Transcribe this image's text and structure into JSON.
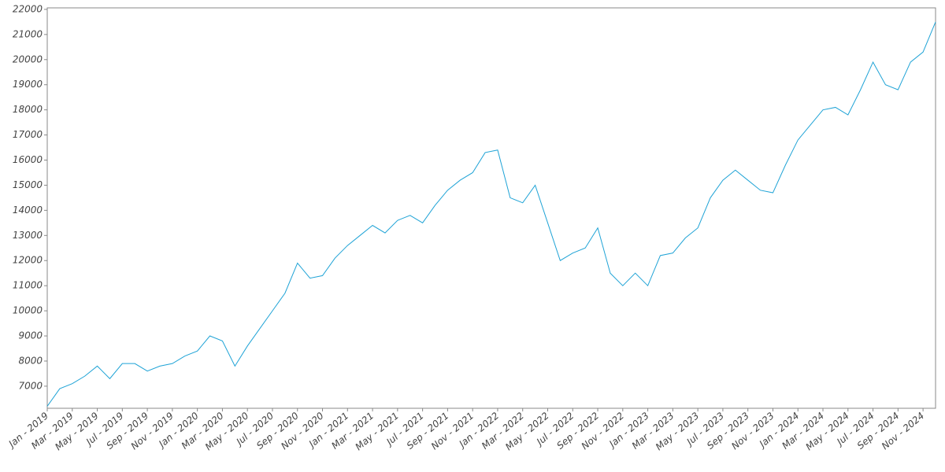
{
  "chart_data": {
    "type": "line",
    "x": [
      "2019-01",
      "2019-02",
      "2019-03",
      "2019-04",
      "2019-05",
      "2019-06",
      "2019-07",
      "2019-08",
      "2019-09",
      "2019-10",
      "2019-11",
      "2019-12",
      "2020-01",
      "2020-02",
      "2020-03",
      "2020-04",
      "2020-05",
      "2020-06",
      "2020-07",
      "2020-08",
      "2020-09",
      "2020-10",
      "2020-11",
      "2020-12",
      "2021-01",
      "2021-02",
      "2021-03",
      "2021-04",
      "2021-05",
      "2021-06",
      "2021-07",
      "2021-08",
      "2021-09",
      "2021-10",
      "2021-11",
      "2021-12",
      "2022-01",
      "2022-02",
      "2022-03",
      "2022-04",
      "2022-05",
      "2022-06",
      "2022-07",
      "2022-08",
      "2022-09",
      "2022-10",
      "2022-11",
      "2022-12",
      "2023-01",
      "2023-02",
      "2023-03",
      "2023-04",
      "2023-05",
      "2023-06",
      "2023-07",
      "2023-08",
      "2023-09",
      "2023-10",
      "2023-11",
      "2023-12",
      "2024-01",
      "2024-02",
      "2024-03",
      "2024-04",
      "2024-05",
      "2024-06",
      "2024-07",
      "2024-08",
      "2024-09",
      "2024-10",
      "2024-11",
      "2024-12"
    ],
    "series": [
      {
        "color": "#1fa3d6",
        "values": [
          6200,
          6900,
          7100,
          7400,
          7800,
          7300,
          7900,
          7900,
          7600,
          7800,
          7900,
          8200,
          8400,
          9000,
          8800,
          7800,
          8600,
          9300,
          10000,
          10700,
          11900,
          11300,
          11400,
          12100,
          12600,
          13000,
          13400,
          13100,
          13600,
          13800,
          13500,
          14200,
          14800,
          15200,
          15500,
          16300,
          16400,
          14500,
          14300,
          15000,
          13500,
          12000,
          12300,
          12500,
          13300,
          11500,
          11000,
          11500,
          11000,
          12200,
          12300,
          12900,
          13300,
          14500,
          15200,
          15600,
          15200,
          14800,
          14700,
          15800,
          16800,
          17400,
          18000,
          18100,
          17800,
          18800,
          19900,
          19000,
          18800,
          19900,
          20300,
          21500
        ]
      }
    ],
    "xlim": [
      "2019-01",
      "2024-12"
    ],
    "xticks": [
      {
        "value": "2019-01",
        "label": "Jan - 2019"
      },
      {
        "value": "2019-03",
        "label": "Mar - 2019"
      },
      {
        "value": "2019-05",
        "label": "May - 2019"
      },
      {
        "value": "2019-07",
        "label": "Jul - 2019"
      },
      {
        "value": "2019-09",
        "label": "Sep - 2019"
      },
      {
        "value": "2019-11",
        "label": "Nov - 2019"
      },
      {
        "value": "2020-01",
        "label": "Jan - 2020"
      },
      {
        "value": "2020-03",
        "label": "Mar - 2020"
      },
      {
        "value": "2020-05",
        "label": "May - 2020"
      },
      {
        "value": "2020-07",
        "label": "Jul - 2020"
      },
      {
        "value": "2020-09",
        "label": "Sep - 2020"
      },
      {
        "value": "2020-11",
        "label": "Nov - 2020"
      },
      {
        "value": "2021-01",
        "label": "Jan - 2021"
      },
      {
        "value": "2021-03",
        "label": "Mar - 2021"
      },
      {
        "value": "2021-05",
        "label": "May - 2021"
      },
      {
        "value": "2021-07",
        "label": "Jul - 2021"
      },
      {
        "value": "2021-09",
        "label": "Sep - 2021"
      },
      {
        "value": "2021-11",
        "label": "Nov - 2021"
      },
      {
        "value": "2022-01",
        "label": "Jan - 2022"
      },
      {
        "value": "2022-03",
        "label": "Mar - 2022"
      },
      {
        "value": "2022-05",
        "label": "May - 2022"
      },
      {
        "value": "2022-07",
        "label": "Jul - 2022"
      },
      {
        "value": "2022-09",
        "label": "Sep - 2022"
      },
      {
        "value": "2022-11",
        "label": "Nov - 2022"
      },
      {
        "value": "2023-01",
        "label": "Jan - 2023"
      },
      {
        "value": "2023-03",
        "label": "Mar - 2023"
      },
      {
        "value": "2023-05",
        "label": "May - 2023"
      },
      {
        "value": "2023-07",
        "label": "Jul - 2023"
      },
      {
        "value": "2023-09",
        "label": "Sep - 2023"
      },
      {
        "value": "2023-11",
        "label": "Nov - 2023"
      },
      {
        "value": "2024-01",
        "label": "Jan - 2024"
      },
      {
        "value": "2024-03",
        "label": "Mar - 2024"
      },
      {
        "value": "2024-05",
        "label": "May - 2024"
      },
      {
        "value": "2024-07",
        "label": "Jul - 2024"
      },
      {
        "value": "2024-09",
        "label": "Sep - 2024"
      },
      {
        "value": "2024-11",
        "label": "Nov - 2024"
      }
    ],
    "ylim": [
      6120,
      22060
    ],
    "yticks": [
      7000,
      8000,
      9000,
      10000,
      11000,
      12000,
      13000,
      14000,
      15000,
      16000,
      17000,
      18000,
      19000,
      20000,
      21000,
      22000
    ]
  }
}
